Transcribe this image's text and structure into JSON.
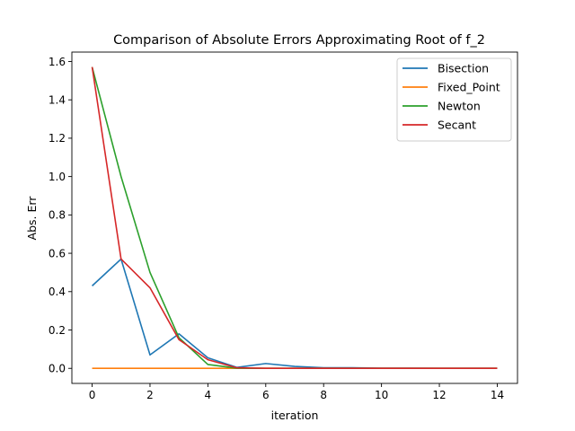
{
  "chart_data": {
    "type": "line",
    "title": "Comparison of Absolute Errors Approximating Root of f_2",
    "xlabel": "iteration",
    "ylabel": "Abs. Err",
    "xlim": [
      -0.7,
      14.7
    ],
    "ylim": [
      -0.0785,
      1.649
    ],
    "xticks": [
      0,
      2,
      4,
      6,
      8,
      10,
      12,
      14
    ],
    "yticks": [
      0.0,
      0.2,
      0.4,
      0.6,
      0.8,
      1.0,
      1.2,
      1.4,
      1.6
    ],
    "xtick_labels": [
      "0",
      "2",
      "4",
      "6",
      "8",
      "10",
      "12",
      "14"
    ],
    "ytick_labels": [
      "0.0",
      "0.2",
      "0.4",
      "0.6",
      "0.8",
      "1.0",
      "1.2",
      "1.4",
      "1.6"
    ],
    "grid": false,
    "legend_position": "top-right",
    "series": [
      {
        "name": "Bisection",
        "color": "#1f77b4",
        "x": [
          0,
          1,
          2,
          3,
          4,
          5,
          6,
          7,
          8,
          9,
          10,
          11,
          12,
          13,
          14
        ],
        "values": [
          0.43,
          0.57,
          0.07,
          0.18,
          0.055,
          0.005,
          0.025,
          0.01,
          0.003,
          0.003,
          0.001,
          0.001,
          0.0005,
          0.0003,
          0.0001
        ]
      },
      {
        "name": "Fixed_Point",
        "color": "#ff7f0e",
        "x": [
          0,
          1,
          2,
          3,
          4,
          5,
          6,
          7,
          8,
          9,
          10,
          11,
          12,
          13,
          14
        ],
        "values": [
          0,
          0,
          0,
          0,
          0,
          0,
          0,
          0,
          0,
          0,
          0,
          0,
          0,
          0,
          0
        ]
      },
      {
        "name": "Newton",
        "color": "#2ca02c",
        "x": [
          0,
          1,
          2,
          3,
          4,
          5,
          6,
          7,
          8,
          9,
          10,
          11,
          12,
          13,
          14
        ],
        "values": [
          1.571,
          1.0,
          0.5,
          0.16,
          0.02,
          0.001,
          0.0,
          0.0,
          0.0,
          0.0,
          0.0,
          0.0,
          0.0,
          0.0,
          0.0
        ]
      },
      {
        "name": "Secant",
        "color": "#d62728",
        "x": [
          0,
          1,
          2,
          3,
          4,
          5,
          6,
          7,
          8,
          9,
          10,
          11,
          12,
          13,
          14
        ],
        "values": [
          1.571,
          0.57,
          0.42,
          0.15,
          0.045,
          0.003,
          0.0,
          0.0,
          0.0,
          0.0,
          0.0,
          0.0,
          0.0,
          0.0,
          0.0
        ]
      }
    ]
  }
}
